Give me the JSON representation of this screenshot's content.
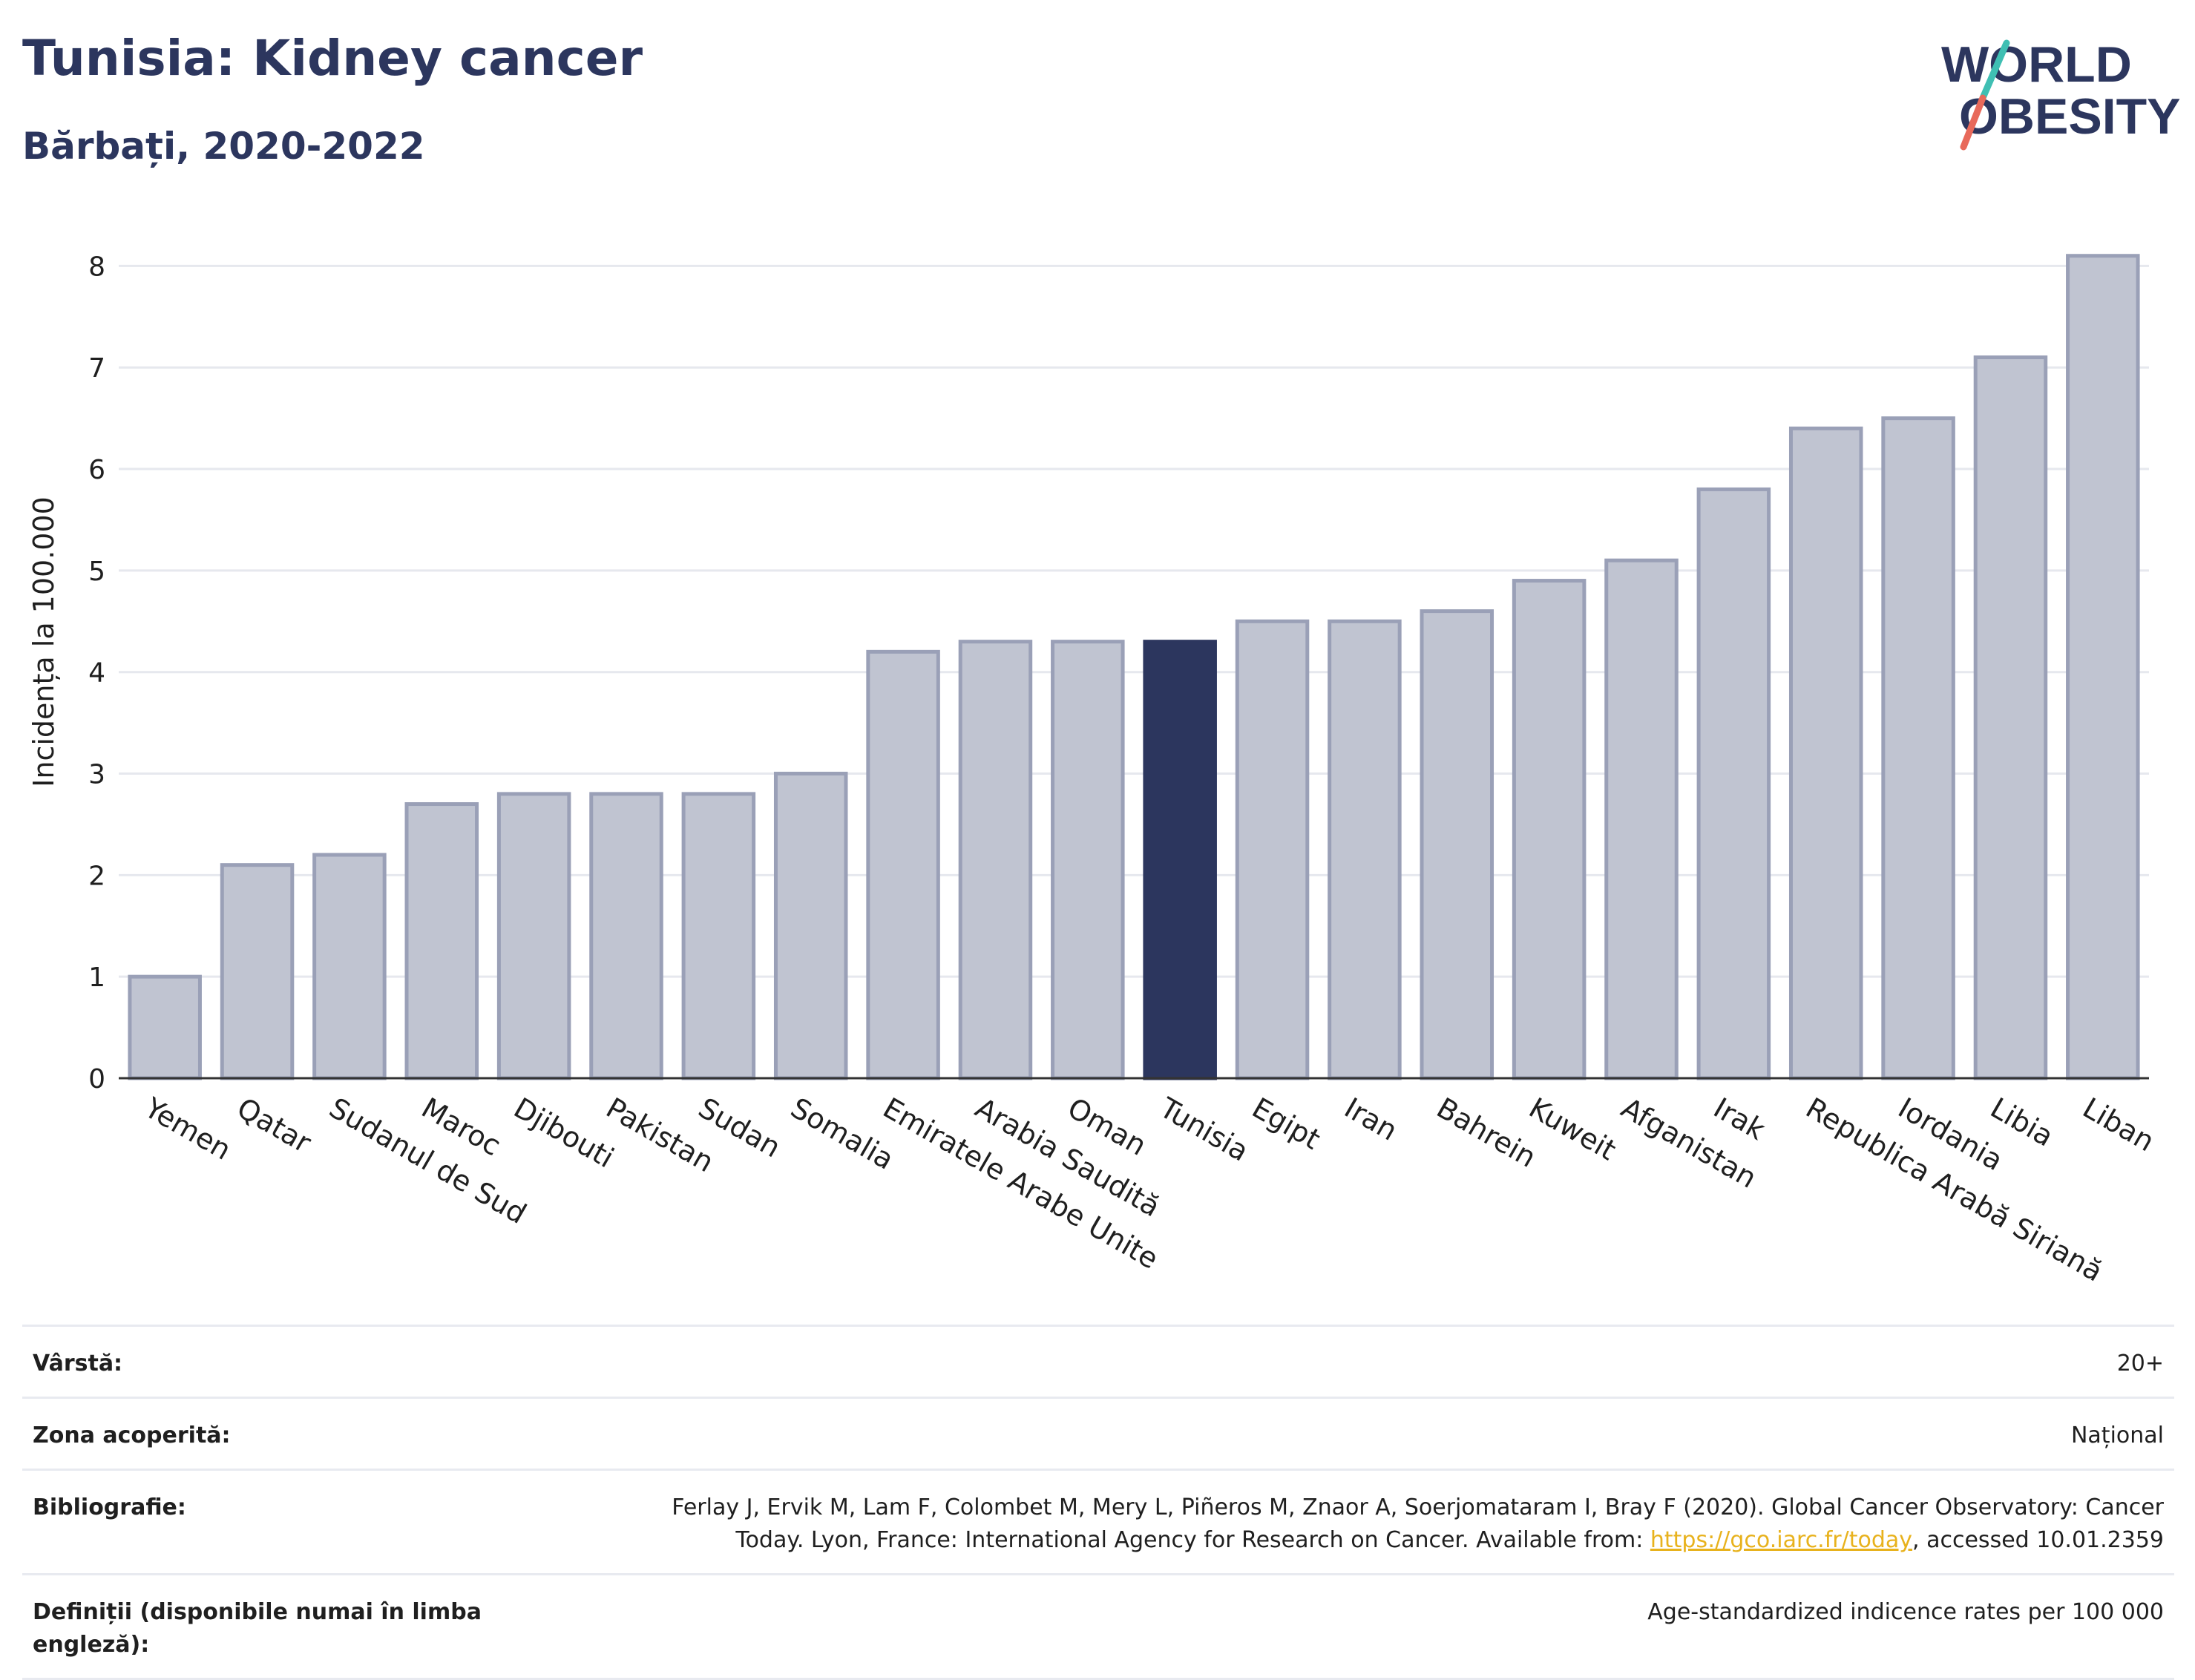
{
  "header": {
    "title": "Tunisia: Kidney cancer",
    "subtitle": "Bărbați, 2020-2022"
  },
  "logo": {
    "line1": "WORLD",
    "line2": "OBESITY"
  },
  "colors": {
    "bar": "#c0c4d1",
    "bar_edge": "#9aa0b7",
    "highlight": "#2c365e",
    "text": "#2c365e"
  },
  "chart_data": {
    "type": "bar",
    "ylabel": "Incidența la 100.000",
    "ylim": [
      0,
      8.5
    ],
    "yticks": [
      0,
      1,
      2,
      3,
      4,
      5,
      6,
      7,
      8
    ],
    "grid": true,
    "highlight": "Tunisia",
    "categories": [
      "Yemen",
      "Qatar",
      "Sudanul de Sud",
      "Maroc",
      "Djibouti",
      "Pakistan",
      "Sudan",
      "Somalia",
      "Emiratele Arabe Unite",
      "Arabia Saudită",
      "Oman",
      "Tunisia",
      "Egipt",
      "Iran",
      "Bahrein",
      "Kuweit",
      "Afganistan",
      "Irak",
      "Republica Arabă Siriană",
      "Iordania",
      "Libia",
      "Liban"
    ],
    "values": [
      1.0,
      2.1,
      2.2,
      2.7,
      2.8,
      2.8,
      2.8,
      3.0,
      4.2,
      4.3,
      4.3,
      4.3,
      4.5,
      4.5,
      4.6,
      4.9,
      5.1,
      5.8,
      6.4,
      6.5,
      7.1,
      8.1
    ]
  },
  "meta": {
    "age_label": "Vârstă:",
    "age_value": "20+",
    "area_label": "Zona acoperită:",
    "area_value": "Național",
    "biblio_label": "Bibliografie:",
    "biblio_text1": "Ferlay J, Ervik M, Lam F, Colombet M, Mery L, Piñeros M, Znaor A, Soerjomataram I, Bray F (2020). Global Cancer Observatory: Cancer",
    "biblio_text2": "Today. Lyon, France: International Agency for Research on Cancer. Available from: ",
    "biblio_link": "https://gco.iarc.fr/today",
    "biblio_text3": ", accessed 10.01.2359",
    "def_label": "Definiții (disponibile numai în limba engleză):",
    "def_value": "Age-standardized indicence rates per 100 000"
  }
}
